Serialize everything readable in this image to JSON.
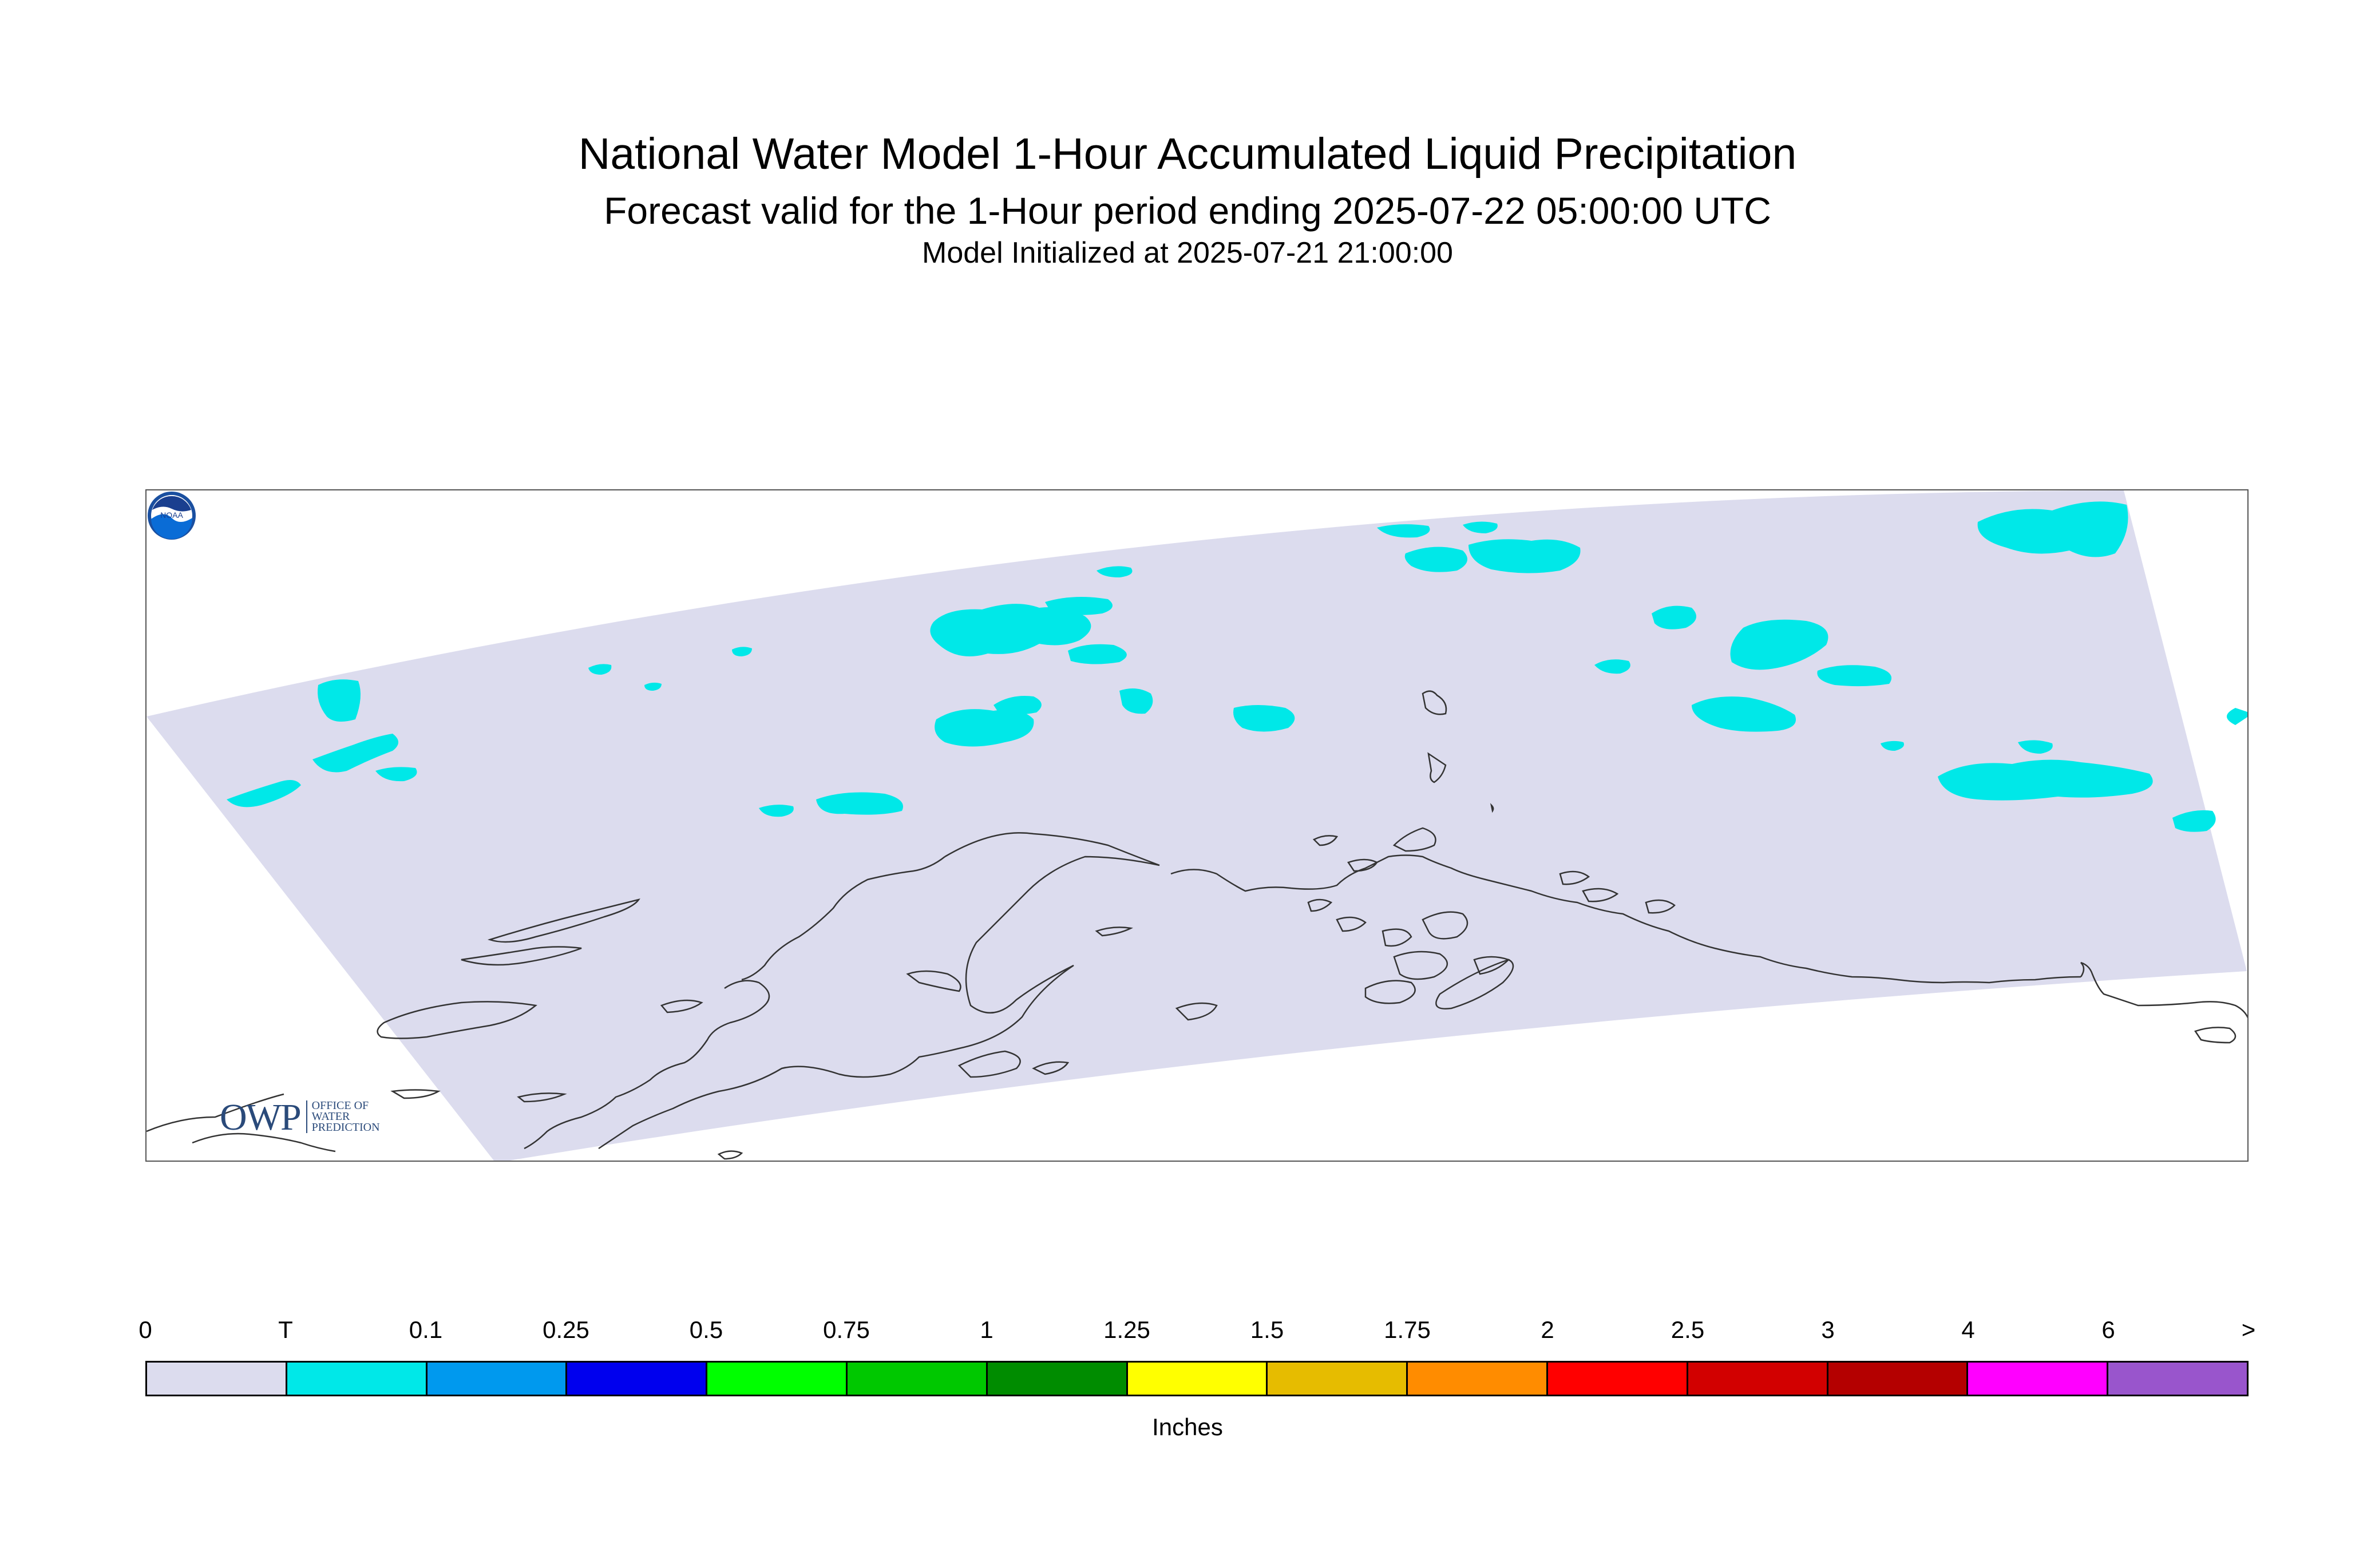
{
  "header": {
    "title": "National Water Model 1-Hour Accumulated Liquid Precipitation",
    "subtitle": "Forecast valid for the 1-Hour period ending 2025-07-22 05:00:00 UTC",
    "init": "Model Initialized at 2025-07-21 21:00:00"
  },
  "map": {
    "domain_color": "#dcdcee",
    "precip_color": "#00e8e8",
    "coast_color": "#333333",
    "region": "Alaska"
  },
  "logos": {
    "owp_mark": "OWP",
    "owp_line1": "OFFICE OF",
    "owp_line2": "WATER",
    "owp_line3": "PREDICTION",
    "noaa_text": "NOAA"
  },
  "legend": {
    "tick_labels": [
      "0",
      "T",
      "0.1",
      "0.25",
      "0.5",
      "0.75",
      "1",
      "1.25",
      "1.5",
      "1.75",
      "2",
      "2.5",
      "3",
      "4",
      "6",
      ">"
    ],
    "colors": [
      "#dcdcee",
      "#00e8e8",
      "#0099ee",
      "#0000ee",
      "#00ff00",
      "#00c800",
      "#008c00",
      "#ffff00",
      "#e6bc00",
      "#ff8c00",
      "#ff0000",
      "#d20000",
      "#b40000",
      "#ff00ff",
      "#9955cc"
    ],
    "units": "Inches"
  }
}
